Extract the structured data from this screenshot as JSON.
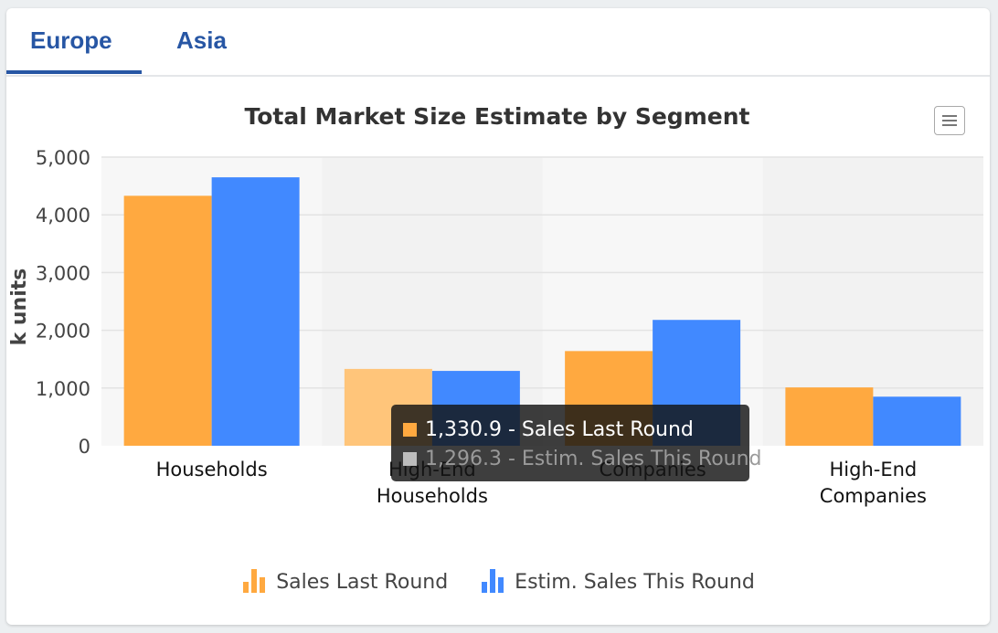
{
  "tabs": [
    {
      "label": "Europe",
      "active": true
    },
    {
      "label": "Asia",
      "active": false
    }
  ],
  "colors": {
    "accent": "#2756a4",
    "series1": "#ffa940",
    "series1_hover": "#ffc57a",
    "series2": "#4189ff",
    "plot_band": "#f2f2f2",
    "plot_band_light": "#f7f7f7"
  },
  "chart_data": {
    "type": "bar",
    "title": "Total Market Size Estimate by Segment",
    "xlabel": "",
    "ylabel": "k units",
    "ylim": [
      0,
      5000
    ],
    "yticks": [
      "0",
      "1,000",
      "2,000",
      "3,000",
      "4,000",
      "5,000"
    ],
    "categories": [
      [
        "Households"
      ],
      [
        "High-End",
        "Households"
      ],
      [
        "Companies"
      ],
      [
        "High-End",
        "Companies"
      ]
    ],
    "series": [
      {
        "name": "Sales Last Round",
        "color": "#ffa940",
        "values": [
          4330,
          1330.9,
          1640,
          1010
        ]
      },
      {
        "name": "Estim. Sales This Round",
        "color": "#4189ff",
        "values": [
          4650,
          1296.3,
          2180,
          850
        ]
      }
    ],
    "grid": true,
    "legend_position": "bottom",
    "hovered_category": 1
  },
  "tooltip": {
    "line1": "1,330.9 - Sales Last Round",
    "line2": "1,296.3 - Estim. Sales This Round"
  },
  "legend": [
    {
      "label": "Sales Last Round",
      "icon": "bar-chart-icon"
    },
    {
      "label": "Estim. Sales This Round",
      "icon": "bar-chart-icon"
    }
  ],
  "menu": {
    "icon": "hamburger-menu-icon"
  }
}
